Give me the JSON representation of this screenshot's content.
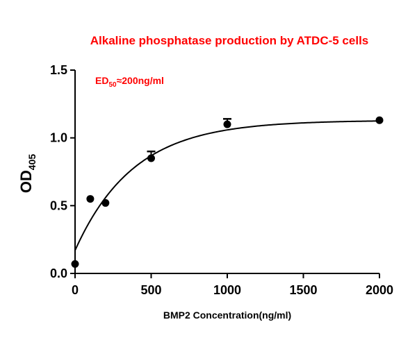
{
  "chart_data": {
    "type": "scatter",
    "title": "Alkaline phosphatase production by ATDC-5 cells",
    "annotation": {
      "main": "ED",
      "subscript": "50",
      "rest": "≈200ng/ml"
    },
    "xlabel": "BMP2 Concentration(ng/ml)",
    "ylabel": {
      "main": "OD",
      "subscript": "405"
    },
    "xlim": [
      0,
      2000
    ],
    "ylim": [
      0,
      1.5
    ],
    "x_ticks": [
      0,
      500,
      1000,
      1500,
      2000
    ],
    "y_ticks": [
      0.0,
      0.5,
      1.0,
      1.5
    ],
    "x_tick_labels": [
      "0",
      "500",
      "1000",
      "1500",
      "2000"
    ],
    "y_tick_labels": [
      "0.0",
      "0.5",
      "1.0",
      "1.5"
    ],
    "points": [
      {
        "x": 0,
        "y": 0.07
      },
      {
        "x": 100,
        "y": 0.55
      },
      {
        "x": 200,
        "y": 0.52
      },
      {
        "x": 500,
        "y": 0.85,
        "error": 0.05
      },
      {
        "x": 1000,
        "y": 1.1,
        "error": 0.04
      },
      {
        "x": 2000,
        "y": 1.13
      }
    ],
    "fit_curve": {
      "model": "one-phase association",
      "y0": 0.17,
      "plateau": 1.13,
      "k": 0.0026
    },
    "grid": false,
    "legend": "none",
    "colors": {
      "title": "#ff0000",
      "annotation": "#ff0000",
      "marks": "#000000"
    }
  }
}
